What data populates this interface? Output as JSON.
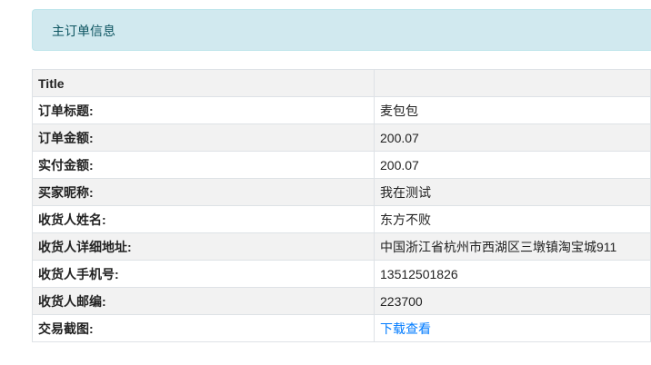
{
  "alert": {
    "title": "主订单信息"
  },
  "table": {
    "header": {
      "label": "Title",
      "value": ""
    },
    "rows": [
      {
        "label": "订单标题:",
        "value": "麦包包"
      },
      {
        "label": "订单金额:",
        "value": "200.07"
      },
      {
        "label": "实付金额:",
        "value": "200.07"
      },
      {
        "label": "买家昵称:",
        "value": "我在测试"
      },
      {
        "label": "收货人姓名:",
        "value": "东方不败"
      },
      {
        "label": "收货人详细地址:",
        "value": "中国浙江省杭州市西湖区三墩镇淘宝城911"
      },
      {
        "label": "收货人手机号:",
        "value": "13512501826"
      },
      {
        "label": "收货人邮编:",
        "value": "223700"
      },
      {
        "label": "交易截图:",
        "link": "下载查看"
      }
    ]
  },
  "colors": {
    "alert_bg": "#d1e9ef",
    "link": "#007bff"
  }
}
